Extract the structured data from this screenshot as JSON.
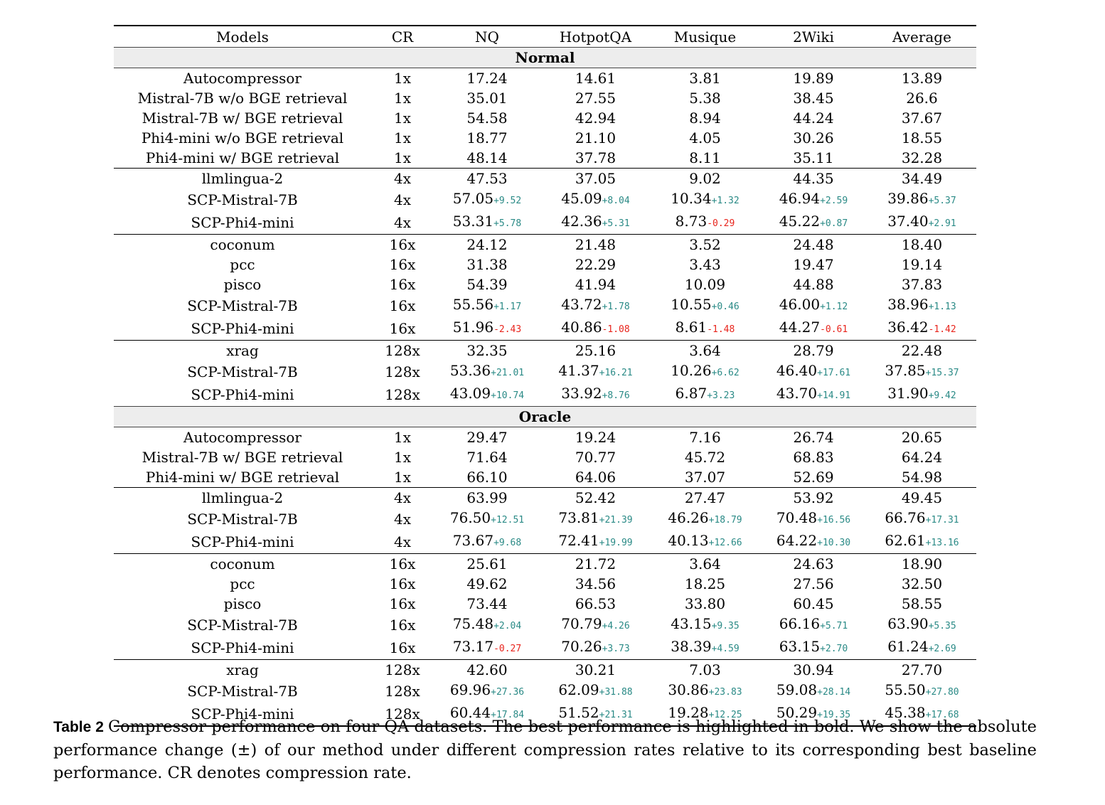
{
  "headers": [
    "Models",
    "CR",
    "NQ",
    "HotpotQA",
    "Musique",
    "2Wiki",
    "Average"
  ],
  "colors": {
    "positive": "#2a8a86",
    "negative": "#e8241c",
    "section_bg": "#ededed"
  },
  "sections": [
    {
      "title": "Normal",
      "groups": [
        [
          {
            "model": "Autocompressor",
            "cr": "1x",
            "cells": [
              {
                "v": "17.24"
              },
              {
                "v": "14.61"
              },
              {
                "v": "3.81"
              },
              {
                "v": "19.89"
              },
              {
                "v": "13.89"
              }
            ]
          },
          {
            "model": "Mistral-7B w/o BGE retrieval",
            "cr": "1x",
            "cells": [
              {
                "v": "35.01"
              },
              {
                "v": "27.55"
              },
              {
                "v": "5.38"
              },
              {
                "v": "38.45"
              },
              {
                "v": "26.6"
              }
            ]
          },
          {
            "model": "Mistral-7B w/ BGE retrieval",
            "cr": "1x",
            "cells": [
              {
                "v": "54.58"
              },
              {
                "v": "42.94"
              },
              {
                "v": "8.94"
              },
              {
                "v": "44.24"
              },
              {
                "v": "37.67"
              }
            ]
          },
          {
            "model": "Phi4-mini w/o BGE retrieval",
            "cr": "1x",
            "cells": [
              {
                "v": "18.77"
              },
              {
                "v": "21.10"
              },
              {
                "v": "4.05"
              },
              {
                "v": "30.26"
              },
              {
                "v": "18.55"
              }
            ]
          },
          {
            "model": "Phi4-mini w/ BGE retrieval",
            "cr": "1x",
            "cells": [
              {
                "v": "48.14"
              },
              {
                "v": "37.78"
              },
              {
                "v": "8.11"
              },
              {
                "v": "35.11"
              },
              {
                "v": "32.28"
              }
            ]
          }
        ],
        [
          {
            "model": "llmlingua-2",
            "cr": "4x",
            "cells": [
              {
                "v": "47.53"
              },
              {
                "v": "37.05"
              },
              {
                "v": "9.02"
              },
              {
                "v": "44.35"
              },
              {
                "v": "34.49"
              }
            ]
          },
          {
            "model": "SCP-Mistral-7B",
            "cr": "4x",
            "cells": [
              {
                "v": "57.05",
                "d": "+9.52"
              },
              {
                "v": "45.09",
                "d": "+8.04"
              },
              {
                "v": "10.34",
                "d": "+1.32"
              },
              {
                "v": "46.94",
                "d": "+2.59"
              },
              {
                "v": "39.86",
                "d": "+5.37"
              }
            ]
          },
          {
            "model": "SCP-Phi4-mini",
            "cr": "4x",
            "cells": [
              {
                "v": "53.31",
                "d": "+5.78"
              },
              {
                "v": "42.36",
                "d": "+5.31"
              },
              {
                "v": "8.73",
                "d": "-0.29"
              },
              {
                "v": "45.22",
                "d": "+0.87"
              },
              {
                "v": "37.40",
                "d": "+2.91"
              }
            ]
          }
        ],
        [
          {
            "model": "coconum",
            "cr": "16x",
            "cells": [
              {
                "v": "24.12"
              },
              {
                "v": "21.48"
              },
              {
                "v": "3.52"
              },
              {
                "v": "24.48"
              },
              {
                "v": "18.40"
              }
            ]
          },
          {
            "model": "pcc",
            "cr": "16x",
            "cells": [
              {
                "v": "31.38"
              },
              {
                "v": "22.29"
              },
              {
                "v": "3.43"
              },
              {
                "v": "19.47"
              },
              {
                "v": "19.14"
              }
            ]
          },
          {
            "model": "pisco",
            "cr": "16x",
            "cells": [
              {
                "v": "54.39"
              },
              {
                "v": "41.94"
              },
              {
                "v": "10.09"
              },
              {
                "v": "44.88"
              },
              {
                "v": "37.83"
              }
            ]
          },
          {
            "model": "SCP-Mistral-7B",
            "cr": "16x",
            "cells": [
              {
                "v": "55.56",
                "d": "+1.17"
              },
              {
                "v": "43.72",
                "d": "+1.78"
              },
              {
                "v": "10.55",
                "d": "+0.46"
              },
              {
                "v": "46.00",
                "d": "+1.12"
              },
              {
                "v": "38.96",
                "d": "+1.13"
              }
            ]
          },
          {
            "model": "SCP-Phi4-mini",
            "cr": "16x",
            "cells": [
              {
                "v": "51.96",
                "d": "-2.43"
              },
              {
                "v": "40.86",
                "d": "-1.08"
              },
              {
                "v": "8.61",
                "d": "-1.48"
              },
              {
                "v": "44.27",
                "d": "-0.61"
              },
              {
                "v": "36.42",
                "d": "-1.42"
              }
            ]
          }
        ],
        [
          {
            "model": "xrag",
            "cr": "128x",
            "cells": [
              {
                "v": "32.35"
              },
              {
                "v": "25.16"
              },
              {
                "v": "3.64"
              },
              {
                "v": "28.79"
              },
              {
                "v": "22.48"
              }
            ]
          },
          {
            "model": "SCP-Mistral-7B",
            "cr": "128x",
            "cells": [
              {
                "v": "53.36",
                "d": "+21.01"
              },
              {
                "v": "41.37",
                "d": "+16.21"
              },
              {
                "v": "10.26",
                "d": "+6.62"
              },
              {
                "v": "46.40",
                "d": "+17.61"
              },
              {
                "v": "37.85",
                "d": "+15.37"
              }
            ]
          },
          {
            "model": "SCP-Phi4-mini",
            "cr": "128x",
            "cells": [
              {
                "v": "43.09",
                "d": "+10.74"
              },
              {
                "v": "33.92",
                "d": "+8.76"
              },
              {
                "v": "6.87",
                "d": "+3.23"
              },
              {
                "v": "43.70",
                "d": "+14.91"
              },
              {
                "v": "31.90",
                "d": "+9.42"
              }
            ]
          }
        ]
      ]
    },
    {
      "title": "Oracle",
      "groups": [
        [
          {
            "model": "Autocompressor",
            "cr": "1x",
            "cells": [
              {
                "v": "29.47"
              },
              {
                "v": "19.24"
              },
              {
                "v": "7.16"
              },
              {
                "v": "26.74"
              },
              {
                "v": "20.65"
              }
            ]
          },
          {
            "model": "Mistral-7B w/ BGE retrieval",
            "cr": "1x",
            "cells": [
              {
                "v": "71.64"
              },
              {
                "v": "70.77"
              },
              {
                "v": "45.72"
              },
              {
                "v": "68.83"
              },
              {
                "v": "64.24"
              }
            ]
          },
          {
            "model": "Phi4-mini w/ BGE retrieval",
            "cr": "1x",
            "cells": [
              {
                "v": "66.10"
              },
              {
                "v": "64.06"
              },
              {
                "v": "37.07"
              },
              {
                "v": "52.69"
              },
              {
                "v": "54.98"
              }
            ]
          }
        ],
        [
          {
            "model": "llmlingua-2",
            "cr": "4x",
            "cells": [
              {
                "v": "63.99"
              },
              {
                "v": "52.42"
              },
              {
                "v": "27.47"
              },
              {
                "v": "53.92"
              },
              {
                "v": "49.45"
              }
            ]
          },
          {
            "model": "SCP-Mistral-7B",
            "cr": "4x",
            "cells": [
              {
                "v": "76.50",
                "d": "+12.51"
              },
              {
                "v": "73.81",
                "d": "+21.39"
              },
              {
                "v": "46.26",
                "d": "+18.79"
              },
              {
                "v": "70.48",
                "d": "+16.56"
              },
              {
                "v": "66.76",
                "d": "+17.31"
              }
            ]
          },
          {
            "model": "SCP-Phi4-mini",
            "cr": "4x",
            "cells": [
              {
                "v": "73.67",
                "d": "+9.68"
              },
              {
                "v": "72.41",
                "d": "+19.99"
              },
              {
                "v": "40.13",
                "d": "+12.66"
              },
              {
                "v": "64.22",
                "d": "+10.30"
              },
              {
                "v": "62.61",
                "d": "+13.16"
              }
            ]
          }
        ],
        [
          {
            "model": "coconum",
            "cr": "16x",
            "cells": [
              {
                "v": "25.61"
              },
              {
                "v": "21.72"
              },
              {
                "v": "3.64"
              },
              {
                "v": "24.63"
              },
              {
                "v": "18.90"
              }
            ]
          },
          {
            "model": "pcc",
            "cr": "16x",
            "cells": [
              {
                "v": "49.62"
              },
              {
                "v": "34.56"
              },
              {
                "v": "18.25"
              },
              {
                "v": "27.56"
              },
              {
                "v": "32.50"
              }
            ]
          },
          {
            "model": "pisco",
            "cr": "16x",
            "cells": [
              {
                "v": "73.44"
              },
              {
                "v": "66.53"
              },
              {
                "v": "33.80"
              },
              {
                "v": "60.45"
              },
              {
                "v": "58.55"
              }
            ]
          },
          {
            "model": "SCP-Mistral-7B",
            "cr": "16x",
            "cells": [
              {
                "v": "75.48",
                "d": "+2.04"
              },
              {
                "v": "70.79",
                "d": "+4.26"
              },
              {
                "v": "43.15",
                "d": "+9.35"
              },
              {
                "v": "66.16",
                "d": "+5.71"
              },
              {
                "v": "63.90",
                "d": "+5.35"
              }
            ]
          },
          {
            "model": "SCP-Phi4-mini",
            "cr": "16x",
            "cells": [
              {
                "v": "73.17",
                "d": "-0.27"
              },
              {
                "v": "70.26",
                "d": "+3.73"
              },
              {
                "v": "38.39",
                "d": "+4.59"
              },
              {
                "v": "63.15",
                "d": "+2.70"
              },
              {
                "v": "61.24",
                "d": "+2.69"
              }
            ]
          }
        ],
        [
          {
            "model": "xrag",
            "cr": "128x",
            "cells": [
              {
                "v": "42.60"
              },
              {
                "v": "30.21"
              },
              {
                "v": "7.03"
              },
              {
                "v": "30.94"
              },
              {
                "v": "27.70"
              }
            ]
          },
          {
            "model": "SCP-Mistral-7B",
            "cr": "128x",
            "cells": [
              {
                "v": "69.96",
                "d": "+27.36"
              },
              {
                "v": "62.09",
                "d": "+31.88"
              },
              {
                "v": "30.86",
                "d": "+23.83"
              },
              {
                "v": "59.08",
                "d": "+28.14"
              },
              {
                "v": "55.50",
                "d": "+27.80"
              }
            ]
          },
          {
            "model": "SCP-Phi4-mini",
            "cr": "128x",
            "cells": [
              {
                "v": "60.44",
                "d": "+17.84"
              },
              {
                "v": "51.52",
                "d": "+21.31"
              },
              {
                "v": "19.28",
                "d": "+12.25"
              },
              {
                "v": "50.29",
                "d": "+19.35"
              },
              {
                "v": "45.38",
                "d": "+17.68"
              }
            ]
          }
        ]
      ]
    }
  ],
  "caption": {
    "label": "Table 2",
    "text": "Compressor performance on four QA datasets. The best performance is highlighted in bold. We show the absolute performance change (±) of our method under different compression rates relative to its corresponding best baseline performance. CR denotes compression rate."
  }
}
